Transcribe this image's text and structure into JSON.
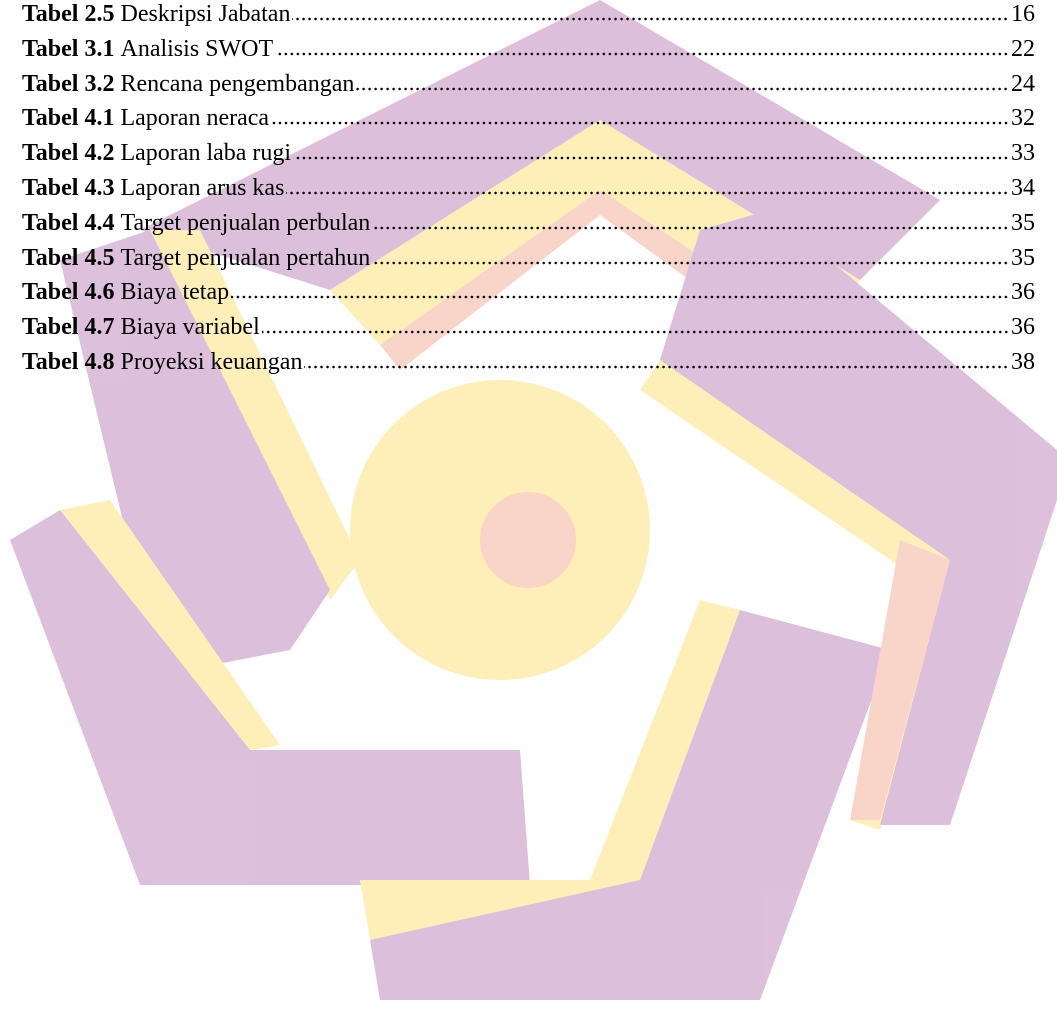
{
  "list_of_tables": {
    "entries": [
      {
        "label": "Tabel 2.5",
        "title": "Deskripsi Jabatan",
        "page": "16"
      },
      {
        "label": "Tabel 3.1",
        "title": "Analisis SWOT",
        "page": "22"
      },
      {
        "label": "Tabel 3.2",
        "title": "Rencana pengembangan",
        "page": "24"
      },
      {
        "label": "Tabel 4.1",
        "title": "Laporan neraca",
        "page": "32"
      },
      {
        "label": "Tabel 4.2",
        "title": "Laporan laba rugi",
        "page": "33"
      },
      {
        "label": "Tabel 4.3",
        "title": "Laporan arus kas",
        "page": "34"
      },
      {
        "label": "Tabel 4.4",
        "title": "Target penjualan perbulan",
        "page": "35"
      },
      {
        "label": "Tabel 4.5",
        "title": "Target penjualan pertahun",
        "page": "35"
      },
      {
        "label": "Tabel 4.6",
        "title": "Biaya tetap",
        "page": "36"
      },
      {
        "label": "Tabel 4.7",
        "title": "Biaya variabel",
        "page": "36"
      },
      {
        "label": "Tabel 4.8",
        "title": "Proyeksi keuangan",
        "page": "38"
      }
    ]
  }
}
